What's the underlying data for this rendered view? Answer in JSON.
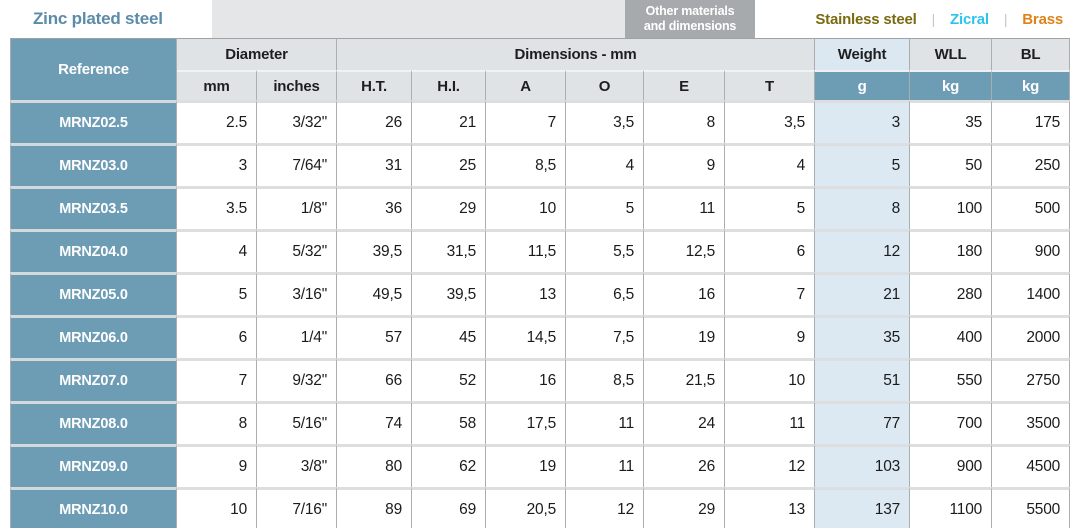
{
  "topbar": {
    "active_tab": "Zinc plated steel",
    "other_materials_button": {
      "line1": "Other materials",
      "line2": "and dimensions"
    },
    "materials": {
      "stainless": "Stainless steel",
      "zicral": "Zicral",
      "brass": "Brass"
    },
    "separator": "|"
  },
  "colors": {
    "accent_blue": "#6d9cb5",
    "tab_text_blue": "#5a8caa",
    "stainless_text": "#7b6a10",
    "zicral_text": "#2cc3ee",
    "brass_text": "#dd8419",
    "button_gray": "#a7aaac",
    "header_gray": "#e0e3e5",
    "weight_light_blue": "#dce8f2"
  },
  "table": {
    "header": {
      "reference": "Reference",
      "diameter": "Diameter",
      "dimensions": "Dimensions - mm",
      "weight": "Weight",
      "wll": "WLL",
      "bl": "BL",
      "sub": {
        "mm": "mm",
        "inches": "inches",
        "ht": "H.T.",
        "hi": "H.I.",
        "a": "A",
        "o": "O",
        "e": "E",
        "t": "T",
        "weight_unit": "g",
        "wll_unit": "kg",
        "bl_unit": "kg"
      }
    },
    "rows": [
      {
        "reference": "MRNZ02.5",
        "mm": "2.5",
        "inches": "3/32\"",
        "ht": "26",
        "hi": "21",
        "a": "7",
        "o": "3,5",
        "e": "8",
        "t": "3,5",
        "weight": "3",
        "wll": "35",
        "bl": "175"
      },
      {
        "reference": "MRNZ03.0",
        "mm": "3",
        "inches": "7/64\"",
        "ht": "31",
        "hi": "25",
        "a": "8,5",
        "o": "4",
        "e": "9",
        "t": "4",
        "weight": "5",
        "wll": "50",
        "bl": "250"
      },
      {
        "reference": "MRNZ03.5",
        "mm": "3.5",
        "inches": "1/8\"",
        "ht": "36",
        "hi": "29",
        "a": "10",
        "o": "5",
        "e": "11",
        "t": "5",
        "weight": "8",
        "wll": "100",
        "bl": "500"
      },
      {
        "reference": "MRNZ04.0",
        "mm": "4",
        "inches": "5/32\"",
        "ht": "39,5",
        "hi": "31,5",
        "a": "11,5",
        "o": "5,5",
        "e": "12,5",
        "t": "6",
        "weight": "12",
        "wll": "180",
        "bl": "900"
      },
      {
        "reference": "MRNZ05.0",
        "mm": "5",
        "inches": "3/16\"",
        "ht": "49,5",
        "hi": "39,5",
        "a": "13",
        "o": "6,5",
        "e": "16",
        "t": "7",
        "weight": "21",
        "wll": "280",
        "bl": "1400"
      },
      {
        "reference": "MRNZ06.0",
        "mm": "6",
        "inches": "1/4\"",
        "ht": "57",
        "hi": "45",
        "a": "14,5",
        "o": "7,5",
        "e": "19",
        "t": "9",
        "weight": "35",
        "wll": "400",
        "bl": "2000"
      },
      {
        "reference": "MRNZ07.0",
        "mm": "7",
        "inches": "9/32\"",
        "ht": "66",
        "hi": "52",
        "a": "16",
        "o": "8,5",
        "e": "21,5",
        "t": "10",
        "weight": "51",
        "wll": "550",
        "bl": "2750"
      },
      {
        "reference": "MRNZ08.0",
        "mm": "8",
        "inches": "5/16\"",
        "ht": "74",
        "hi": "58",
        "a": "17,5",
        "o": "11",
        "e": "24",
        "t": "11",
        "weight": "77",
        "wll": "700",
        "bl": "3500"
      },
      {
        "reference": "MRNZ09.0",
        "mm": "9",
        "inches": "3/8\"",
        "ht": "80",
        "hi": "62",
        "a": "19",
        "o": "11",
        "e": "26",
        "t": "12",
        "weight": "103",
        "wll": "900",
        "bl": "4500"
      },
      {
        "reference": "MRNZ10.0",
        "mm": "10",
        "inches": "7/16\"",
        "ht": "89",
        "hi": "69",
        "a": "20,5",
        "o": "12",
        "e": "29",
        "t": "13",
        "weight": "137",
        "wll": "1100",
        "bl": "5500"
      }
    ]
  }
}
